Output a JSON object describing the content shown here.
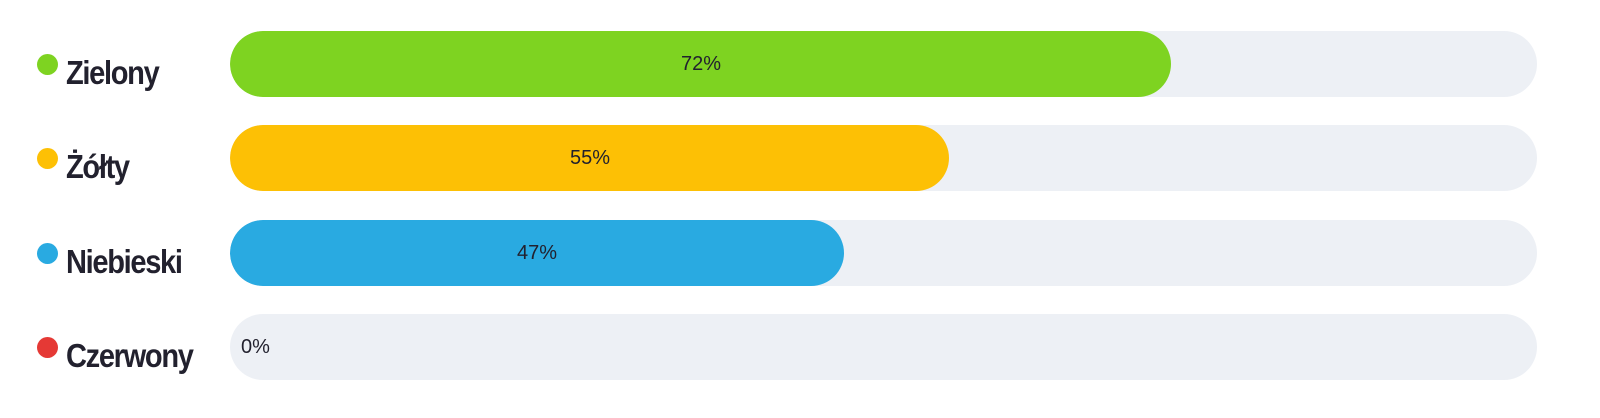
{
  "chart_data": {
    "type": "bar",
    "orientation": "horizontal",
    "categories": [
      "Zielony",
      "Żółty",
      "Niebieski",
      "Czerwony"
    ],
    "values": [
      72,
      55,
      47,
      0
    ],
    "value_labels": [
      "72%",
      "55%",
      "47%",
      "0%"
    ],
    "colors": [
      "#7ed321",
      "#fdc005",
      "#29aae1",
      "#e53935"
    ],
    "track_color": "#edf0f5",
    "xlim": [
      0,
      100
    ],
    "grid": false
  }
}
